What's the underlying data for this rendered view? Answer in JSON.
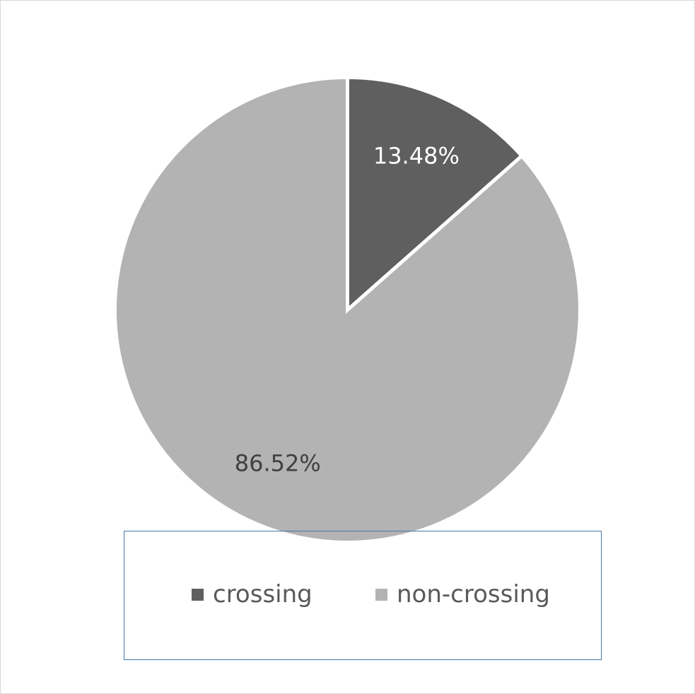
{
  "chart_data": {
    "type": "pie",
    "title": "",
    "slices": [
      {
        "name": "crossing",
        "value": 13.48,
        "label": "13.48%",
        "color": "#5f5f5f",
        "label_color": "#ffffff"
      },
      {
        "name": "non-crossing",
        "value": 86.52,
        "label": "86.52%",
        "color": "#b3b3b3",
        "label_color": "#404040"
      }
    ],
    "start_angle_deg": 0,
    "direction": "clockwise",
    "legend_position": "bottom",
    "slice_separator_color": "#ffffff"
  },
  "legend": {
    "items": [
      {
        "label": "crossing",
        "color": "#5f5f5f"
      },
      {
        "label": "non-crossing",
        "color": "#b3b3b3"
      }
    ]
  }
}
